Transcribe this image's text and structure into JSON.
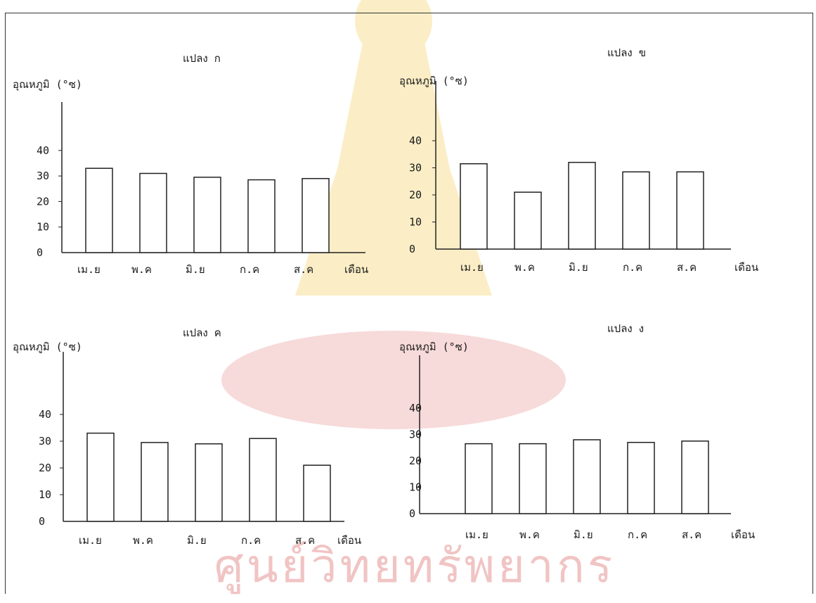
{
  "watermark": {
    "text": "ศูนย์วิทยทรัพยากร"
  },
  "chart_data": [
    {
      "type": "bar",
      "title": "แปลง ก",
      "ylabel": "อุณหภูมิ (°ซ)",
      "xlabel": "เดือน",
      "categories": [
        "เม.ย",
        "พ.ค",
        "มิ.ย",
        "ก.ค",
        "ส.ค"
      ],
      "values": [
        33,
        31,
        29.5,
        28.5,
        29
      ],
      "yticks": [
        "0",
        "10",
        "20",
        "30",
        "40"
      ],
      "ylim": [
        0,
        50
      ],
      "grid": false
    },
    {
      "type": "bar",
      "title": "แปลง ข",
      "ylabel": "อุณหภูมิ (°ซ)",
      "xlabel": "เดือน",
      "categories": [
        "เม.ย",
        "พ.ค",
        "มิ.ย",
        "ก.ค",
        "ส.ค"
      ],
      "values": [
        31.5,
        21,
        32,
        28.5,
        28.5
      ],
      "yticks": [
        "0",
        "10",
        "20",
        "30",
        "40"
      ],
      "ylim": [
        0,
        55
      ],
      "grid": false
    },
    {
      "type": "bar",
      "title": "แปลง ค",
      "ylabel": "อุณหภูมิ (°ซ)",
      "xlabel": "เดือน",
      "categories": [
        "เม.ย",
        "พ.ค",
        "มิ.ย",
        "ก.ค",
        "ส.ค"
      ],
      "values": [
        33,
        29.5,
        29,
        31,
        21
      ],
      "yticks": [
        "0",
        "10",
        "20",
        "30",
        "40"
      ],
      "ylim": [
        0,
        55
      ],
      "grid": false
    },
    {
      "type": "bar",
      "title": "แปลง ง",
      "ylabel": "อุณหภูมิ (°ซ)",
      "xlabel": "เดือน",
      "categories": [
        "เม.ย",
        "พ.ค",
        "มิ.ย",
        "ก.ค",
        "ส.ค"
      ],
      "values": [
        26.5,
        26.5,
        28,
        27,
        27.5
      ],
      "yticks": [
        "0",
        "10",
        "20",
        "30",
        "40"
      ],
      "ylim": [
        0,
        60
      ],
      "grid": false
    }
  ]
}
